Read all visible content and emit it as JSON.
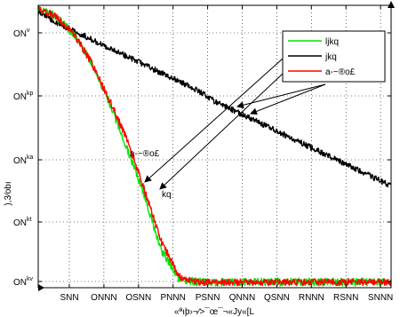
{
  "chart_data": {
    "type": "line",
    "xlabel": "«ªıþ›¬∕>¯œ¯¬«Jy«[L",
    "ylabel": "),3⁄obı",
    "x_ticks": [
      "SNN",
      "ONNN",
      "OSNN",
      "PNNN",
      "PSNN",
      "QNNN",
      "QSNN",
      "RNNN",
      "RSNN",
      "SNNN"
    ],
    "y_ticks": [
      {
        "base": "ON",
        "exp": "v"
      },
      {
        "base": "ON",
        "exp": "kp"
      },
      {
        "base": "ON",
        "exp": "ka"
      },
      {
        "base": "ON",
        "exp": "kt"
      },
      {
        "base": "ON",
        "exp": "kv"
      }
    ],
    "grid": true,
    "legend_position": "top-right",
    "series": [
      {
        "name": "ljkq",
        "color": "#00e400",
        "points": [
          [
            0,
            0.01
          ],
          [
            1,
            0.04
          ],
          [
            2,
            0.1
          ],
          [
            3,
            0.2
          ],
          [
            4,
            0.34
          ],
          [
            5,
            0.5
          ],
          [
            6,
            0.67
          ],
          [
            7,
            0.87
          ],
          [
            8,
            0.97
          ],
          [
            9,
            0.98
          ],
          [
            10,
            0.98
          ],
          [
            11,
            0.98
          ],
          [
            12,
            0.98
          ],
          [
            13,
            0.98
          ],
          [
            14,
            0.98
          ],
          [
            15,
            0.98
          ],
          [
            16,
            0.98
          ],
          [
            17,
            0.98
          ],
          [
            18,
            0.98
          ],
          [
            19,
            0.98
          ],
          [
            20,
            0.98
          ]
        ]
      },
      {
        "name": "jkq",
        "color": "#000000",
        "points": [
          [
            0,
            0.02
          ],
          [
            1,
            0.06
          ],
          [
            2,
            0.09
          ],
          [
            3,
            0.12
          ],
          [
            4,
            0.15
          ],
          [
            5,
            0.18
          ],
          [
            6,
            0.21
          ],
          [
            7,
            0.24
          ],
          [
            8,
            0.27
          ],
          [
            9,
            0.3
          ],
          [
            10,
            0.34
          ],
          [
            11,
            0.37
          ],
          [
            12,
            0.4
          ],
          [
            13,
            0.43
          ],
          [
            14,
            0.46
          ],
          [
            15,
            0.49
          ],
          [
            16,
            0.52
          ],
          [
            17,
            0.55
          ],
          [
            18,
            0.58
          ],
          [
            19,
            0.61
          ],
          [
            20,
            0.64
          ]
        ]
      },
      {
        "name": "a-~®o£",
        "color": "#ff0000",
        "points": [
          [
            0,
            0.01
          ],
          [
            1,
            0.04
          ],
          [
            2,
            0.1
          ],
          [
            3,
            0.2
          ],
          [
            4,
            0.33
          ],
          [
            5,
            0.47
          ],
          [
            6,
            0.65
          ],
          [
            7,
            0.84
          ],
          [
            8,
            0.96
          ],
          [
            9,
            0.98
          ],
          [
            10,
            0.98
          ],
          [
            11,
            0.98
          ],
          [
            12,
            0.98
          ],
          [
            13,
            0.98
          ],
          [
            14,
            0.98
          ],
          [
            15,
            0.98
          ],
          [
            16,
            0.98
          ],
          [
            17,
            0.98
          ],
          [
            18,
            0.98
          ],
          [
            19,
            0.98
          ],
          [
            20,
            0.98
          ]
        ]
      }
    ],
    "annotations": [
      {
        "text": "a-~®o£"
      },
      {
        "text": "kq"
      }
    ]
  }
}
